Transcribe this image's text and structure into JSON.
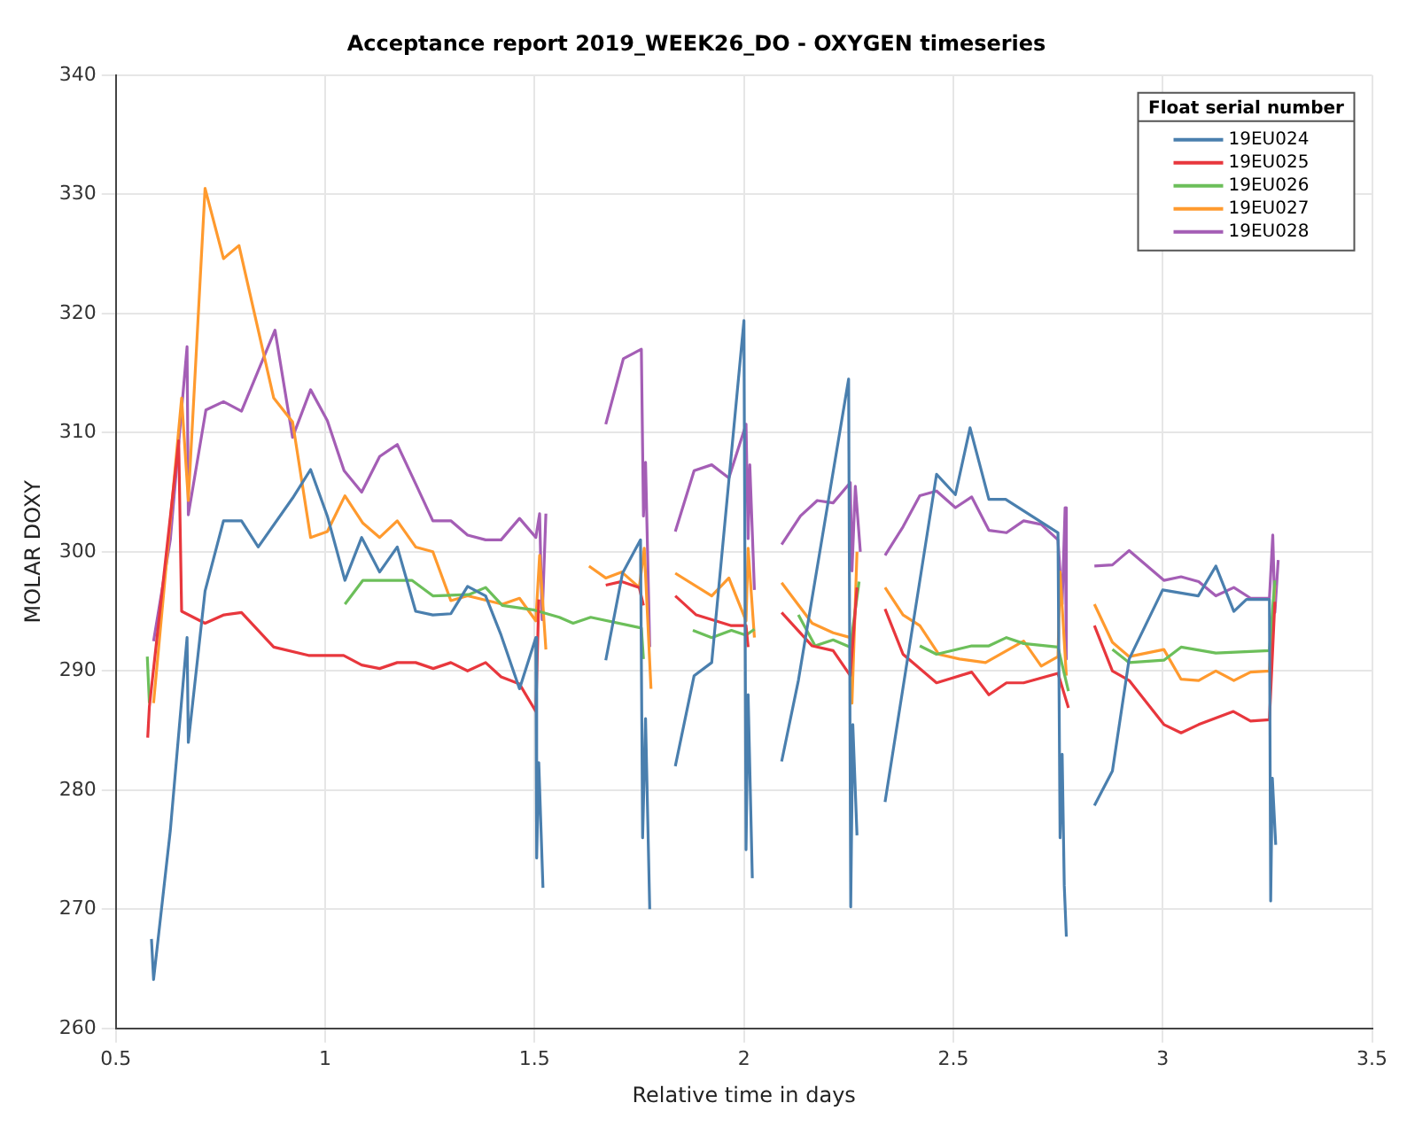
{
  "chart_data": {
    "type": "line",
    "title": "Acceptance report 2019_WEEK26_DO - OXYGEN timeseries",
    "xlabel": "Relative time in days",
    "ylabel": "MOLAR DOXY",
    "legend_title": "Float serial number",
    "legend": "top right",
    "grid": true,
    "marker": "none",
    "line_style": "solid",
    "xlim": [
      0.5,
      3.5
    ],
    "xticks": [
      0.5,
      1,
      1.5,
      2,
      2.5,
      3,
      3.5
    ],
    "ylim": [
      260,
      340
    ],
    "yticks": [
      260,
      270,
      280,
      290,
      300,
      310,
      320,
      330,
      340
    ],
    "series": [
      {
        "name": "19EU024",
        "color": "#4a7fae",
        "x": [
          0.585,
          0.59,
          0.63,
          0.67,
          0.673,
          0.713,
          0.757,
          0.8,
          0.84,
          0.922,
          0.965,
          1.005,
          1.047,
          1.087,
          1.13,
          1.172,
          1.216,
          1.257,
          1.3,
          1.34,
          1.383,
          1.42,
          1.464,
          1.503,
          1.505,
          1.51,
          1.52,
          1.6,
          1.67,
          1.71,
          1.753,
          1.758,
          1.765,
          1.775,
          1.8,
          1.836,
          1.881,
          1.923,
          2.0,
          2.005,
          2.01,
          2.02,
          2.05,
          2.09,
          2.13,
          2.25,
          2.255,
          2.26,
          2.27,
          2.3,
          2.337,
          2.46,
          2.505,
          2.54,
          2.585,
          2.625,
          2.75,
          2.755,
          2.76,
          2.765,
          2.77,
          2.8,
          2.837,
          2.88,
          2.92,
          3.0,
          3.085,
          3.127,
          3.17,
          3.2,
          3.255,
          3.258,
          3.262,
          3.27
        ],
        "values": [
          267.5,
          264.1,
          276.6,
          292.8,
          284,
          296.7,
          302.6,
          302.6,
          300.4,
          304.5,
          306.9,
          303,
          297.6,
          301.2,
          298.3,
          300.4,
          295,
          294.7,
          294.8,
          297.1,
          296.3,
          293,
          288.5,
          292.8,
          274.3,
          282.3,
          271.8,
          null,
          290.9,
          298.2,
          301,
          276,
          286,
          270,
          null,
          282,
          289.6,
          290.7,
          319.4,
          275,
          288,
          272.6,
          null,
          282.4,
          289.2,
          314.5,
          270.2,
          285.5,
          276.2,
          null,
          279,
          306.5,
          304.8,
          310.4,
          304.4,
          304.4,
          301.6,
          276,
          283,
          272,
          267.7,
          null,
          278.7,
          281.6,
          291,
          296.8,
          296.3,
          298.8,
          295,
          296,
          296,
          270.7,
          281,
          275.4
        ]
      },
      {
        "name": "19EU025",
        "color": "#e8373d",
        "x": [
          0.576,
          0.58,
          0.65,
          0.657,
          0.713,
          0.758,
          0.8,
          0.877,
          0.96,
          1.044,
          1.087,
          1.13,
          1.172,
          1.216,
          1.258,
          1.3,
          1.34,
          1.383,
          1.42,
          1.464,
          1.503,
          1.51,
          1.6,
          1.67,
          1.708,
          1.75,
          1.76,
          1.8,
          1.836,
          1.886,
          1.97,
          2.005,
          2.01,
          2.05,
          2.09,
          2.163,
          2.213,
          2.254,
          2.27,
          2.3,
          2.337,
          2.38,
          2.46,
          2.544,
          2.585,
          2.627,
          2.668,
          2.75,
          2.775,
          2.8,
          2.837,
          2.88,
          2.92,
          3.003,
          3.044,
          3.086,
          3.169,
          3.21,
          3.255,
          3.268
        ],
        "values": [
          284.4,
          287,
          309.3,
          295,
          294,
          294.7,
          294.9,
          292,
          291.3,
          291.3,
          290.5,
          290.2,
          290.7,
          290.7,
          290.2,
          290.7,
          290,
          290.7,
          289.5,
          288.9,
          286.6,
          296,
          null,
          297.2,
          297.5,
          297,
          295.5,
          null,
          296.3,
          294.7,
          293.8,
          293.8,
          292,
          null,
          294.9,
          292.1,
          291.7,
          289.6,
          297,
          null,
          295.2,
          291.4,
          289,
          289.9,
          288,
          289,
          289,
          289.8,
          286.9,
          null,
          293.8,
          290,
          289.2,
          285.5,
          284.8,
          285.5,
          286.6,
          285.8,
          285.9,
          295.8
        ]
      },
      {
        "name": "19EU026",
        "color": "#6cbf5a",
        "x": [
          0.575,
          0.58,
          0.8,
          1.047,
          1.09,
          1.207,
          1.257,
          1.343,
          1.383,
          1.423,
          1.5,
          1.559,
          1.592,
          1.634,
          1.755,
          1.76,
          1.8,
          1.878,
          1.923,
          1.97,
          2.005,
          2.025,
          2.08,
          2.13,
          2.17,
          2.213,
          2.254,
          2.275,
          2.35,
          2.42,
          2.46,
          2.544,
          2.585,
          2.627,
          2.668,
          2.75,
          2.775,
          2.83,
          2.88,
          2.92,
          3.003,
          3.044,
          3.127,
          3.255,
          3.268
        ],
        "values": [
          291.2,
          287.3,
          null,
          295.6,
          297.6,
          297.6,
          296.3,
          296.4,
          297,
          295.5,
          295.1,
          294.5,
          294,
          294.5,
          293.6,
          291,
          null,
          293.4,
          292.8,
          293.4,
          293,
          293.5,
          null,
          294.7,
          292.1,
          292.6,
          292,
          297.5,
          null,
          292.1,
          291.4,
          292.1,
          292.1,
          292.8,
          292.3,
          292,
          288.3,
          null,
          291.8,
          290.7,
          290.9,
          292,
          291.5,
          291.7,
          297.6
        ]
      },
      {
        "name": "19EU027",
        "color": "#ff9a2e",
        "x": [
          0.59,
          0.657,
          0.673,
          0.713,
          0.757,
          0.794,
          0.877,
          0.922,
          0.965,
          1.005,
          1.047,
          1.09,
          1.13,
          1.172,
          1.216,
          1.257,
          1.3,
          1.34,
          1.423,
          1.464,
          1.503,
          1.512,
          1.527,
          1.58,
          1.63,
          1.67,
          1.708,
          1.75,
          1.762,
          1.778,
          1.8,
          1.836,
          1.923,
          1.964,
          2.005,
          2.01,
          2.025,
          2.05,
          2.09,
          2.163,
          2.213,
          2.254,
          2.258,
          2.27,
          2.3,
          2.337,
          2.38,
          2.42,
          2.465,
          2.515,
          2.577,
          2.668,
          2.71,
          2.75,
          2.755,
          2.77,
          2.8,
          2.837,
          2.88,
          2.92,
          3.003,
          3.044,
          3.086,
          3.127,
          3.17,
          3.21,
          3.255,
          3.268
        ],
        "values": [
          287.3,
          312.9,
          304.3,
          330.5,
          324.6,
          325.7,
          312.9,
          310.9,
          301.2,
          301.7,
          304.7,
          302.4,
          301.2,
          302.6,
          300.4,
          300,
          295.9,
          296.3,
          295.6,
          296.1,
          294.2,
          299.7,
          291.8,
          null,
          298.8,
          297.8,
          298.3,
          297,
          300.3,
          288.5,
          null,
          298.2,
          296.3,
          297.8,
          294.2,
          300.3,
          292.8,
          null,
          297.4,
          294,
          293.2,
          292.8,
          287.3,
          300,
          null,
          297,
          294.7,
          293.8,
          291.4,
          291,
          290.7,
          292.5,
          290.4,
          291.2,
          298.3,
          289.6,
          null,
          295.6,
          292.4,
          291.2,
          291.8,
          289.3,
          289.2,
          290,
          289.2,
          289.9,
          290,
          297.2
        ]
      },
      {
        "name": "19EU028",
        "color": "#a45eb5",
        "x": [
          0.59,
          0.63,
          0.67,
          0.673,
          0.715,
          0.757,
          0.8,
          0.84,
          0.88,
          0.922,
          0.965,
          1.005,
          1.045,
          1.087,
          1.13,
          1.172,
          1.216,
          1.257,
          1.3,
          1.34,
          1.383,
          1.42,
          1.464,
          1.503,
          1.512,
          1.518,
          1.527,
          1.6,
          1.67,
          1.712,
          1.755,
          1.76,
          1.765,
          1.775,
          1.8,
          1.836,
          1.881,
          1.923,
          1.964,
          2.005,
          2.01,
          2.014,
          2.025,
          2.05,
          2.09,
          2.135,
          2.175,
          2.213,
          2.254,
          2.258,
          2.266,
          2.278,
          2.3,
          2.337,
          2.38,
          2.42,
          2.46,
          2.505,
          2.544,
          2.585,
          2.627,
          2.668,
          2.71,
          2.75,
          2.76,
          2.767,
          2.77,
          2.8,
          2.837,
          2.88,
          2.92,
          3.003,
          3.044,
          3.086,
          3.127,
          3.17,
          3.21,
          3.255,
          3.263,
          3.268,
          3.276
        ],
        "values": [
          292.5,
          301,
          317.2,
          303.1,
          311.9,
          312.6,
          311.8,
          315.2,
          318.6,
          309.6,
          313.6,
          311,
          306.8,
          305,
          308,
          309,
          305.7,
          302.6,
          302.6,
          301.4,
          301,
          301,
          302.8,
          301.2,
          303.2,
          294.3,
          303.2,
          null,
          310.7,
          316.2,
          317,
          303,
          307.5,
          292,
          null,
          301.7,
          306.8,
          307.3,
          306.2,
          310.7,
          301.1,
          307.3,
          296.8,
          null,
          300.6,
          303,
          304.3,
          304.1,
          305.8,
          298.4,
          305.5,
          300,
          null,
          299.7,
          302.1,
          304.7,
          305.1,
          303.7,
          304.6,
          301.8,
          301.6,
          302.6,
          302.3,
          301,
          295.6,
          303.7,
          291,
          null,
          298.8,
          298.9,
          300.1,
          297.6,
          297.9,
          297.5,
          296.3,
          297,
          296.1,
          296.1,
          301.4,
          294.9,
          299.3
        ]
      }
    ]
  }
}
